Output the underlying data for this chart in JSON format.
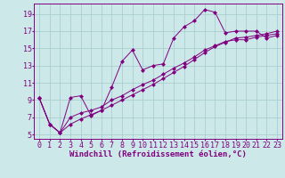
{
  "xlabel": "Windchill (Refroidissement éolien,°C)",
  "x_values": [
    0,
    1,
    2,
    3,
    4,
    5,
    6,
    7,
    8,
    9,
    10,
    11,
    12,
    13,
    14,
    15,
    16,
    17,
    18,
    19,
    20,
    21,
    22,
    23
  ],
  "line1": [
    9.2,
    6.2,
    5.2,
    9.3,
    9.5,
    7.2,
    7.8,
    10.5,
    13.5,
    14.8,
    12.5,
    13.0,
    13.2,
    16.2,
    17.5,
    18.2,
    19.5,
    19.2,
    16.8,
    17.0,
    17.0,
    17.0,
    16.2,
    16.5
  ],
  "line2": [
    9.2,
    6.2,
    5.2,
    7.0,
    7.5,
    7.8,
    8.2,
    9.0,
    9.5,
    10.2,
    10.8,
    11.3,
    12.0,
    12.7,
    13.3,
    14.0,
    14.8,
    15.3,
    15.8,
    16.0,
    16.0,
    16.3,
    16.5,
    16.7
  ],
  "line3": [
    9.2,
    6.2,
    5.2,
    6.2,
    6.8,
    7.3,
    7.8,
    8.4,
    9.0,
    9.6,
    10.2,
    10.8,
    11.5,
    12.2,
    12.9,
    13.7,
    14.5,
    15.2,
    15.7,
    16.2,
    16.3,
    16.5,
    16.7,
    17.0
  ],
  "line_color": "#800080",
  "marker": "D",
  "marker_size": 2.5,
  "bg_color": "#cce8e8",
  "grid_color": "#aacece",
  "ylim": [
    4.5,
    20.2
  ],
  "xlim": [
    -0.5,
    23.5
  ],
  "yticks": [
    5,
    7,
    9,
    11,
    13,
    15,
    17,
    19
  ],
  "xticks": [
    0,
    1,
    2,
    3,
    4,
    5,
    6,
    7,
    8,
    9,
    10,
    11,
    12,
    13,
    14,
    15,
    16,
    17,
    18,
    19,
    20,
    21,
    22,
    23
  ],
  "font_color": "#800080",
  "tick_font_size": 6,
  "label_font_size": 6.5
}
